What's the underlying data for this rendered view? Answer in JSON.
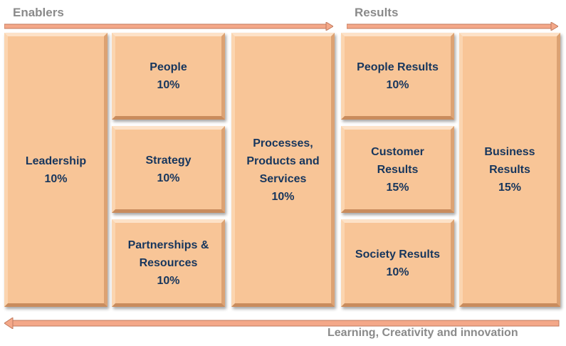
{
  "headers": {
    "enablers": "Enablers",
    "results": "Results",
    "footer": "Learning, Creativity and innovation"
  },
  "boxes": {
    "leadership": {
      "label": "Leadership",
      "pct": "10%"
    },
    "people": {
      "label": "People",
      "pct": "10%"
    },
    "strategy": {
      "label": "Strategy",
      "pct": "10%"
    },
    "partnerships": {
      "label1": "Partnerships &",
      "label2": "Resources",
      "pct": "10%"
    },
    "processes": {
      "label1": "Processes,",
      "label2": "Products and",
      "label3": "Services",
      "pct": "10%"
    },
    "people_results": {
      "label": "People Results",
      "pct": "10%"
    },
    "customer_results": {
      "label1": "Customer",
      "label2": "Results",
      "pct": "15%"
    },
    "society_results": {
      "label": "Society Results",
      "pct": "10%"
    },
    "business_results": {
      "label1": "Business",
      "label2": "Results",
      "pct": "15%"
    }
  },
  "colors": {
    "box_fill": "#f8c597",
    "text": "#17365d",
    "header_text": "#8a8a8a",
    "arrow_fill": "#f4a889"
  }
}
